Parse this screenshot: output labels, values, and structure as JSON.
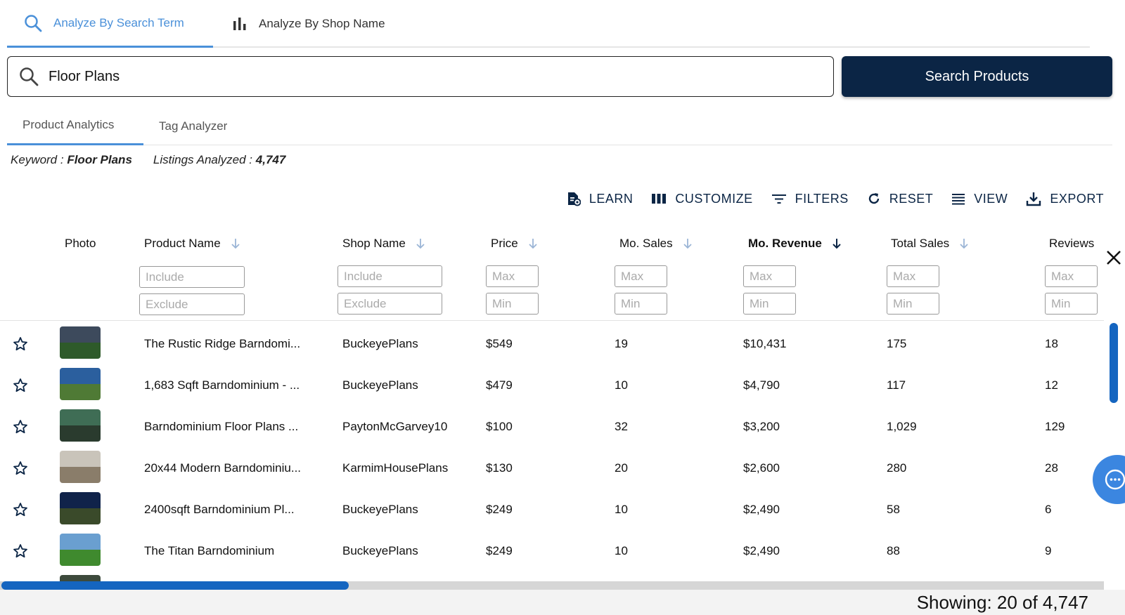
{
  "top_tabs": {
    "search_term": "Analyze By Search Term",
    "shop_name": "Analyze By Shop Name"
  },
  "search": {
    "value": "Floor Plans",
    "button": "Search Products"
  },
  "sub_tabs": {
    "product_analytics": "Product Analytics",
    "tag_analyzer": "Tag Analyzer"
  },
  "summary": {
    "keyword_label": "Keyword :",
    "keyword": "Floor Plans",
    "listings_label": "Listings Analyzed :",
    "listings": "4,747"
  },
  "toolbar": {
    "learn": "LEARN",
    "customize": "CUSTOMIZE",
    "filters": "FILTERS",
    "reset": "RESET",
    "view": "VIEW",
    "export": "EXPORT"
  },
  "columns": {
    "photo": "Photo",
    "product_name": "Product Name",
    "shop_name": "Shop Name",
    "price": "Price",
    "mo_sales": "Mo. Sales",
    "mo_revenue": "Mo. Revenue",
    "total_sales": "Total Sales",
    "reviews": "Reviews"
  },
  "filter_placeholders": {
    "include": "Include",
    "exclude": "Exclude",
    "max": "Max",
    "min": "Min"
  },
  "rows": [
    {
      "product": "The Rustic Ridge Barndomi...",
      "shop": "BuckeyePlans",
      "price": "$549",
      "mo_sales": "19",
      "mo_revenue": "$10,431",
      "total_sales": "175",
      "reviews": "18",
      "thumb_colors": [
        "#3d4a5c",
        "#2e5a2a"
      ]
    },
    {
      "product": "1,683 Sqft Barndominium - ...",
      "shop": "BuckeyePlans",
      "price": "$479",
      "mo_sales": "10",
      "mo_revenue": "$4,790",
      "total_sales": "117",
      "reviews": "12",
      "thumb_colors": [
        "#2b5f9e",
        "#4f7a35"
      ]
    },
    {
      "product": "Barndominium Floor Plans ...",
      "shop": "PaytonMcGarvey10",
      "price": "$100",
      "mo_sales": "32",
      "mo_revenue": "$3,200",
      "total_sales": "1,029",
      "reviews": "129",
      "thumb_colors": [
        "#3f6d55",
        "#2a3b2e"
      ]
    },
    {
      "product": "20x44 Modern Barndominiu...",
      "shop": "KarmimHousePlans",
      "price": "$130",
      "mo_sales": "20",
      "mo_revenue": "$2,600",
      "total_sales": "280",
      "reviews": "28",
      "thumb_colors": [
        "#c9c4ba",
        "#8a7d6a"
      ]
    },
    {
      "product": "2400sqft Barndominium Pl...",
      "shop": "BuckeyePlans",
      "price": "$249",
      "mo_sales": "10",
      "mo_revenue": "$2,490",
      "total_sales": "58",
      "reviews": "6",
      "thumb_colors": [
        "#10234a",
        "#3a4a2a"
      ]
    },
    {
      "product": "The Titan Barndominium",
      "shop": "BuckeyePlans",
      "price": "$249",
      "mo_sales": "10",
      "mo_revenue": "$2,490",
      "total_sales": "88",
      "reviews": "9",
      "thumb_colors": [
        "#6a9fd0",
        "#3f8a2e"
      ]
    },
    {
      "product": "",
      "shop": "",
      "price": "",
      "mo_sales": "",
      "mo_revenue": "",
      "total_sales": "",
      "reviews": "",
      "thumb_colors": [
        "#3d4a3c",
        "#5a5a4a"
      ]
    }
  ],
  "footer": {
    "showing": "Showing: 20 of 4,747"
  },
  "colors": {
    "accent": "#4a90d9",
    "navy": "#0b2545",
    "scroll": "#1565c0",
    "chat": "#3b86e0"
  }
}
